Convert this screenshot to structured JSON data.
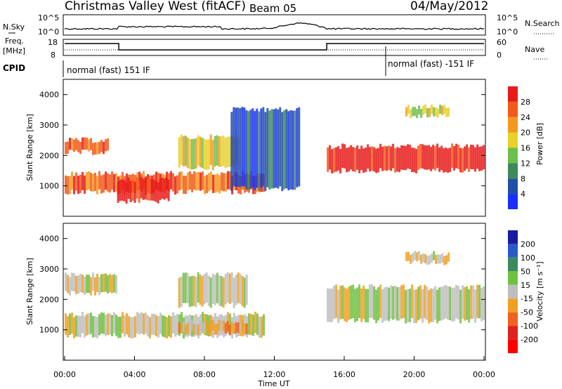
{
  "header": {
    "title": "Christmas Valley West (fitACF)",
    "beam": "Beam 05",
    "date": "04/May/2012"
  },
  "status_panels": {
    "nsky_label": "N.Sky",
    "nsearch_label": "N.Search",
    "freq_label_line1": "Freq.",
    "freq_label_line2": "[MHz]",
    "nave_label": "Nave",
    "cpid_label": "CPID",
    "noise_ticks_left": [
      "10^5",
      "10^0"
    ],
    "noise_ticks_right": [
      "10^5",
      "10^0"
    ],
    "freq_ticks_left": [
      "18",
      "8"
    ],
    "freq_ticks_right": [
      "60",
      "0"
    ],
    "cpid_segments": [
      {
        "text": "normal (fast) 151 IF",
        "start_hour": 0,
        "end_hour": 18.2
      },
      {
        "text": "normal (fast) -151 IF",
        "start_hour": 18.2,
        "end_hour": 24
      }
    ],
    "freq_trace": [
      {
        "start_hour": 0,
        "end_hour": 3.1,
        "level": "high"
      },
      {
        "start_hour": 3.1,
        "end_hour": 15.0,
        "level": "low"
      },
      {
        "start_hour": 15.0,
        "end_hour": 24,
        "level": "high"
      }
    ]
  },
  "chart_data": [
    {
      "type": "heatmap",
      "panel": "power",
      "ylabel": "Slant Range [km]",
      "yticks": [
        "1000",
        "2000",
        "3000",
        "4000"
      ],
      "ylim": [
        0,
        4500
      ],
      "xlim": [
        0,
        24
      ],
      "colorbar_label": "Power [dB]",
      "colorbar_ticks": [
        "4",
        "8",
        "12",
        "16",
        "20",
        "24",
        "28"
      ],
      "colors": [
        "#1a2fff",
        "#1f4fa6",
        "#3a8a5a",
        "#6cbf4a",
        "#e7d12a",
        "#f39a1e",
        "#f25a1a",
        "#e81a1a"
      ],
      "features": [
        {
          "start_hour": 0,
          "end_hour": 11.5,
          "range_start_km": 800,
          "range_end_km": 1400,
          "level": 6
        },
        {
          "start_hour": 3.0,
          "end_hour": 6.0,
          "range_start_km": 500,
          "range_end_km": 1200,
          "level": 7
        },
        {
          "start_hour": 0,
          "end_hour": 2.5,
          "range_start_km": 2100,
          "range_end_km": 2500,
          "level": 6
        },
        {
          "start_hour": 6.5,
          "end_hour": 10.0,
          "range_start_km": 1600,
          "range_end_km": 2600,
          "level": 4
        },
        {
          "start_hour": 15.0,
          "end_hour": 24,
          "range_start_km": 1500,
          "range_end_km": 2300,
          "level": 7
        },
        {
          "start_hour": 19.5,
          "end_hour": 22.0,
          "range_start_km": 3300,
          "range_end_km": 3600,
          "level": 4
        },
        {
          "start_hour": 9.5,
          "end_hour": 13.5,
          "range_start_km": 900,
          "range_end_km": 3500,
          "level": 1
        }
      ]
    },
    {
      "type": "heatmap",
      "panel": "velocity",
      "ylabel": "Slant Range [km]",
      "yticks": [
        "1000",
        "2000",
        "3000",
        "4000"
      ],
      "ylim": [
        0,
        4500
      ],
      "xlim": [
        0,
        24
      ],
      "xlabel": "Time UT",
      "xticks": [
        "00:00",
        "04:00",
        "08:00",
        "12:00",
        "16:00",
        "20:00",
        "00:00"
      ],
      "colorbar_label": "Velocity [m s⁻¹]",
      "colorbar_ticks": [
        "200",
        "100",
        "50",
        "15",
        "-15",
        "-50",
        "-100",
        "-200"
      ],
      "colors": [
        "#1a1aa0",
        "#2a5ac8",
        "#3a8a5a",
        "#70c040",
        "#bebebe",
        "#f0a020",
        "#f06020",
        "#e02020",
        "#ff0000"
      ],
      "features": [
        {
          "start_hour": 0,
          "end_hour": 11.5,
          "range_start_km": 800,
          "range_end_km": 1500,
          "level": 4
        },
        {
          "start_hour": 6.5,
          "end_hour": 10.5,
          "range_start_km": 900,
          "range_end_km": 1250,
          "level": 5
        },
        {
          "start_hour": 0,
          "end_hour": 3.0,
          "range_start_km": 2200,
          "range_end_km": 2800,
          "level": 4
        },
        {
          "start_hour": 6.5,
          "end_hour": 10.5,
          "range_start_km": 1800,
          "range_end_km": 2800,
          "level": 4
        },
        {
          "start_hour": 15.0,
          "end_hour": 24,
          "range_start_km": 1300,
          "range_end_km": 2400,
          "level": 4
        },
        {
          "start_hour": 19.5,
          "end_hour": 22.0,
          "range_start_km": 3200,
          "range_end_km": 3500,
          "level": 4
        }
      ]
    }
  ]
}
